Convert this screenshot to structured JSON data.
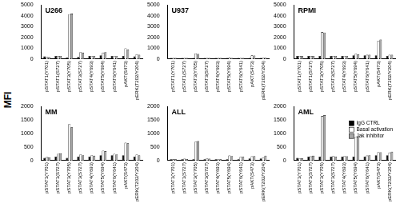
{
  "y_label": "MFI",
  "chart_data": [
    {
      "type": "bar",
      "title": "U266",
      "categories": [
        "pSTAT1(Y701)",
        "pSTAT1(S727)",
        "pSTAT3(Y705)",
        "pSTAT3(S727)",
        "pSTAT4(Y693)",
        "pSTAT5(Y694)",
        "pSTAT6(Y641)",
        "pAKT(S473)",
        "pERK(T202/Y204)"
      ],
      "series": [
        {
          "name": "IgG CTRL",
          "color": "#000000",
          "values": [
            250,
            300,
            150,
            200,
            300,
            350,
            300,
            300,
            250
          ]
        },
        {
          "name": "Basal activation",
          "color": "#ffffff",
          "values": [
            200,
            300,
            4150,
            650,
            300,
            600,
            300,
            1000,
            450
          ]
        },
        {
          "name": "Jak inhibitor",
          "color": "#a6a6a6",
          "values": [
            180,
            300,
            4200,
            600,
            300,
            650,
            300,
            900,
            400
          ]
        }
      ],
      "ylim": [
        0,
        5000
      ],
      "yticks": [
        0,
        1000,
        2000,
        3000,
        4000,
        5000
      ],
      "grid": false
    },
    {
      "type": "bar",
      "title": "U937",
      "categories": [
        "pSTAT1(Y701)",
        "pSTAT1(S727)",
        "pSTAT3(Y705)",
        "pSTAT3(S727)",
        "pSTAT4(Y693)",
        "pSTAT5(Y694)",
        "pSTAT6(Y641)",
        "pAKT(S473)",
        "pERK(T202/Y204)"
      ],
      "series": [
        {
          "name": "IgG CTRL",
          "color": "#000000",
          "values": [
            100,
            100,
            100,
            100,
            100,
            100,
            100,
            100,
            100
          ]
        },
        {
          "name": "Basal activation",
          "color": "#ffffff",
          "values": [
            100,
            100,
            520,
            100,
            100,
            120,
            100,
            340,
            150
          ]
        },
        {
          "name": "Jak inhibitor",
          "color": "#a6a6a6",
          "values": [
            100,
            100,
            480,
            100,
            100,
            100,
            100,
            330,
            130
          ]
        }
      ],
      "ylim": [
        0,
        5000
      ],
      "yticks": [
        0,
        1000,
        2000,
        3000,
        4000,
        5000
      ],
      "grid": false
    },
    {
      "type": "bar",
      "title": "RPMI",
      "categories": [
        "pSTAT1(Y701)",
        "pSTAT1(S727)",
        "pSTAT3(Y705)",
        "pSTAT3(S727)",
        "pSTAT4(Y693)",
        "pSTAT5(Y694)",
        "pSTAT6(Y641)",
        "pAKT(S473)",
        "pERK(T202/Y204)"
      ],
      "series": [
        {
          "name": "IgG CTRL",
          "color": "#000000",
          "values": [
            300,
            300,
            300,
            300,
            300,
            350,
            350,
            350,
            300
          ]
        },
        {
          "name": "Basal activation",
          "color": "#ffffff",
          "values": [
            300,
            300,
            2500,
            300,
            300,
            500,
            400,
            1700,
            400
          ]
        },
        {
          "name": "Jak inhibitor",
          "color": "#a6a6a6",
          "values": [
            300,
            300,
            2450,
            300,
            300,
            450,
            400,
            1800,
            400
          ]
        }
      ],
      "ylim": [
        0,
        5000
      ],
      "yticks": [
        0,
        1000,
        2000,
        3000,
        4000,
        5000
      ],
      "grid": false
    },
    {
      "type": "bar",
      "title": "MM",
      "categories": [
        "pSTAT1(Y701)",
        "pSTAT1(S727)",
        "pSTAT3(Y705)",
        "pSTAT3(S727)",
        "pSTAT4(Y693)",
        "pSTAT5(Y694)",
        "pSTAT6(Y641)",
        "pAKT(S473)",
        "pERK(T202/Y204)"
      ],
      "series": [
        {
          "name": "IgG CTRL",
          "color": "#000000",
          "values": [
            100,
            150,
            100,
            150,
            150,
            200,
            200,
            200,
            150
          ]
        },
        {
          "name": "Basal activation",
          "color": "#ffffff",
          "values": [
            130,
            250,
            1350,
            230,
            200,
            370,
            250,
            660,
            230
          ]
        },
        {
          "name": "Jak inhibitor",
          "color": "#a6a6a6",
          "values": [
            120,
            270,
            1230,
            200,
            180,
            350,
            230,
            640,
            200
          ]
        }
      ],
      "ylim": [
        0,
        2000
      ],
      "yticks": [
        0,
        500,
        1000,
        1500,
        2000
      ],
      "grid": false
    },
    {
      "type": "bar",
      "title": "ALL",
      "categories": [
        "pSTAT1(Y701)",
        "pSTAT1(S727)",
        "pSTAT3(Y705)",
        "pSTAT3(S727)",
        "pSTAT4(Y693)",
        "pSTAT5(Y694)",
        "pSTAT6(Y641)",
        "pAKT(S473)",
        "pERK(T202/Y204)"
      ],
      "series": [
        {
          "name": "IgG CTRL",
          "color": "#000000",
          "values": [
            50,
            50,
            50,
            50,
            50,
            50,
            50,
            80,
            80
          ]
        },
        {
          "name": "Basal activation",
          "color": "#ffffff",
          "values": [
            50,
            70,
            700,
            80,
            60,
            190,
            140,
            160,
            120
          ]
        },
        {
          "name": "Jak inhibitor",
          "color": "#a6a6a6",
          "values": [
            50,
            60,
            720,
            70,
            50,
            170,
            150,
            170,
            180
          ]
        }
      ],
      "ylim": [
        0,
        2000
      ],
      "yticks": [
        0,
        500,
        1000,
        1500,
        2000
      ],
      "grid": false
    },
    {
      "type": "bar",
      "title": "AML",
      "categories": [
        "pSTAT1(Y701)",
        "pSTAT1(S727)",
        "pSTAT3(Y705)",
        "pSTAT3(S727)",
        "pSTAT4(Y693)",
        "pSTAT5(Y694)",
        "pSTAT6(Y641)",
        "pAKT(S473)",
        "pERK(T202/Y204)"
      ],
      "series": [
        {
          "name": "IgG CTRL",
          "color": "#000000",
          "values": [
            100,
            150,
            150,
            150,
            150,
            150,
            150,
            200,
            200
          ]
        },
        {
          "name": "Basal activation",
          "color": "#ffffff",
          "values": [
            80,
            160,
            1650,
            170,
            170,
            870,
            190,
            320,
            300
          ]
        },
        {
          "name": "Jak inhibitor",
          "color": "#a6a6a6",
          "values": [
            90,
            180,
            1680,
            150,
            160,
            900,
            200,
            310,
            330
          ]
        }
      ],
      "ylim": [
        0,
        2000
      ],
      "yticks": [
        0,
        500,
        1000,
        1500,
        2000
      ],
      "grid": false,
      "legend": "upper right"
    }
  ]
}
